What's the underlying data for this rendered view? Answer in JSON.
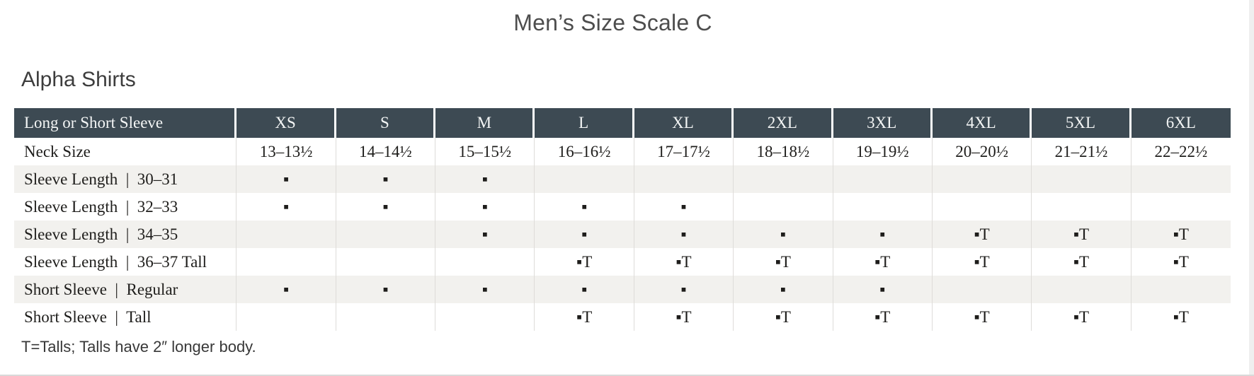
{
  "page": {
    "title": "Men’s Size Scale C",
    "section_heading": "Alpha Shirts",
    "footnote": "T=Talls; Talls have 2″ longer body."
  },
  "table": {
    "header": {
      "label": "Long or Short Sleeve",
      "sizes": [
        "XS",
        "S",
        "M",
        "L",
        "XL",
        "2XL",
        "3XL",
        "4XL",
        "5XL",
        "6XL"
      ]
    },
    "rows": [
      {
        "label": "Neck Size",
        "cells": [
          "13–13½",
          "14–14½",
          "15–15½",
          "16–16½",
          "17–17½",
          "18–18½",
          "19–19½",
          "20–20½",
          "21–21½",
          "22–22½"
        ]
      },
      {
        "label": "Sleeve Length  |  30–31",
        "cells": [
          "▪",
          "▪",
          "▪",
          "",
          "",
          "",
          "",
          "",
          "",
          ""
        ]
      },
      {
        "label": "Sleeve Length  |  32–33",
        "cells": [
          "▪",
          "▪",
          "▪",
          "▪",
          "▪",
          "",
          "",
          "",
          "",
          ""
        ]
      },
      {
        "label": "Sleeve Length  |  34–35",
        "cells": [
          "",
          "",
          "▪",
          "▪",
          "▪",
          "▪",
          "▪",
          "▪T",
          "▪T",
          "▪T"
        ]
      },
      {
        "label": "Sleeve Length  |  36–37 Tall",
        "cells": [
          "",
          "",
          "",
          "▪T",
          "▪T",
          "▪T",
          "▪T",
          "▪T",
          "▪T",
          "▪T"
        ]
      },
      {
        "label": "Short Sleeve  |  Regular",
        "cells": [
          "▪",
          "▪",
          "▪",
          "▪",
          "▪",
          "▪",
          "▪",
          "",
          "",
          ""
        ]
      },
      {
        "label": "Short Sleeve  |  Tall",
        "cells": [
          "",
          "",
          "",
          "▪T",
          "▪T",
          "▪T",
          "▪T",
          "▪T",
          "▪T",
          "▪T"
        ]
      }
    ],
    "legend": {
      "dot_marker": "▪",
      "tall_marker": "▪T"
    }
  },
  "colors": {
    "header_bg": "#3d4a53",
    "header_text": "#f3f5f5",
    "stripe_bg": "#f2f1ee",
    "body_text": "#1e1d1b",
    "grid_line": "#dedcd9",
    "title_text": "#4d4d4d",
    "heading_text": "#3d3d3d",
    "footnote_text": "#383838",
    "edge_strip": "#efefef",
    "bottom_line": "#d9d9d9"
  }
}
